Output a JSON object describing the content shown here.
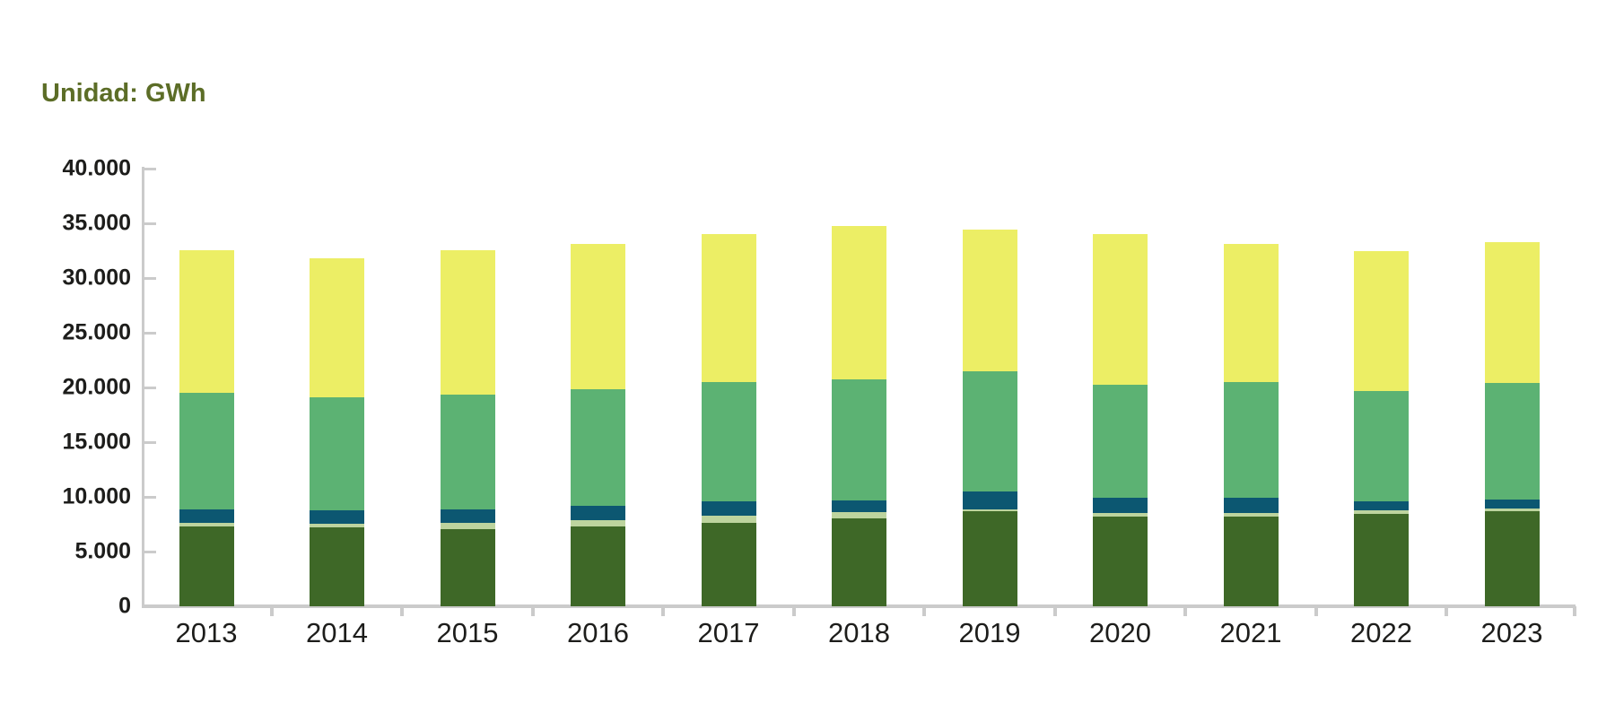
{
  "title": {
    "text": "Unidad: GWh",
    "color": "#5c6d27"
  },
  "chart_data": {
    "type": "bar",
    "stacked": true,
    "unit": "GWh",
    "title": "Unidad: GWh",
    "xlabel": "",
    "ylabel": "",
    "categories": [
      "2013",
      "2014",
      "2015",
      "2016",
      "2017",
      "2018",
      "2019",
      "2020",
      "2021",
      "2022",
      "2023"
    ],
    "series": [
      {
        "name": "segment-dark-green",
        "color": "#3e6827",
        "values": [
          7270,
          7190,
          7050,
          7320,
          7650,
          8060,
          8690,
          8200,
          8200,
          8420,
          8690
        ]
      },
      {
        "name": "segment-light-sage",
        "color": "#bdd49e",
        "values": [
          330,
          350,
          600,
          550,
          630,
          550,
          190,
          350,
          350,
          350,
          220
        ]
      },
      {
        "name": "segment-teal-blue",
        "color": "#0c5771",
        "values": [
          1230,
          1210,
          1180,
          1290,
          1290,
          1090,
          1590,
          1370,
          1370,
          860,
          820
        ]
      },
      {
        "name": "segment-medium-green",
        "color": "#5cb273",
        "values": [
          10660,
          10380,
          10520,
          10660,
          10950,
          11010,
          11010,
          10300,
          10580,
          10060,
          10660
        ]
      },
      {
        "name": "segment-yellow",
        "color": "#ecee65",
        "values": [
          13030,
          12650,
          13170,
          13290,
          13500,
          14020,
          12980,
          13820,
          12600,
          12810,
          12890
        ]
      }
    ],
    "totals": [
      32520,
      31780,
      32520,
      33110,
      34020,
      34730,
      34460,
      34040,
      33100,
      32500,
      33280
    ],
    "ylim": [
      0,
      40000
    ],
    "y_ticks": [
      0,
      5000,
      10000,
      15000,
      20000,
      25000,
      30000,
      35000,
      40000
    ],
    "y_tick_labels": [
      "0",
      "5.000",
      "10.000",
      "15.000",
      "20.000",
      "25.000",
      "30.000",
      "35.000",
      "40.000"
    ],
    "grid": "off",
    "legend": "none",
    "axis_color": "#cbcbcb",
    "label_color": "#1d1d1b"
  }
}
